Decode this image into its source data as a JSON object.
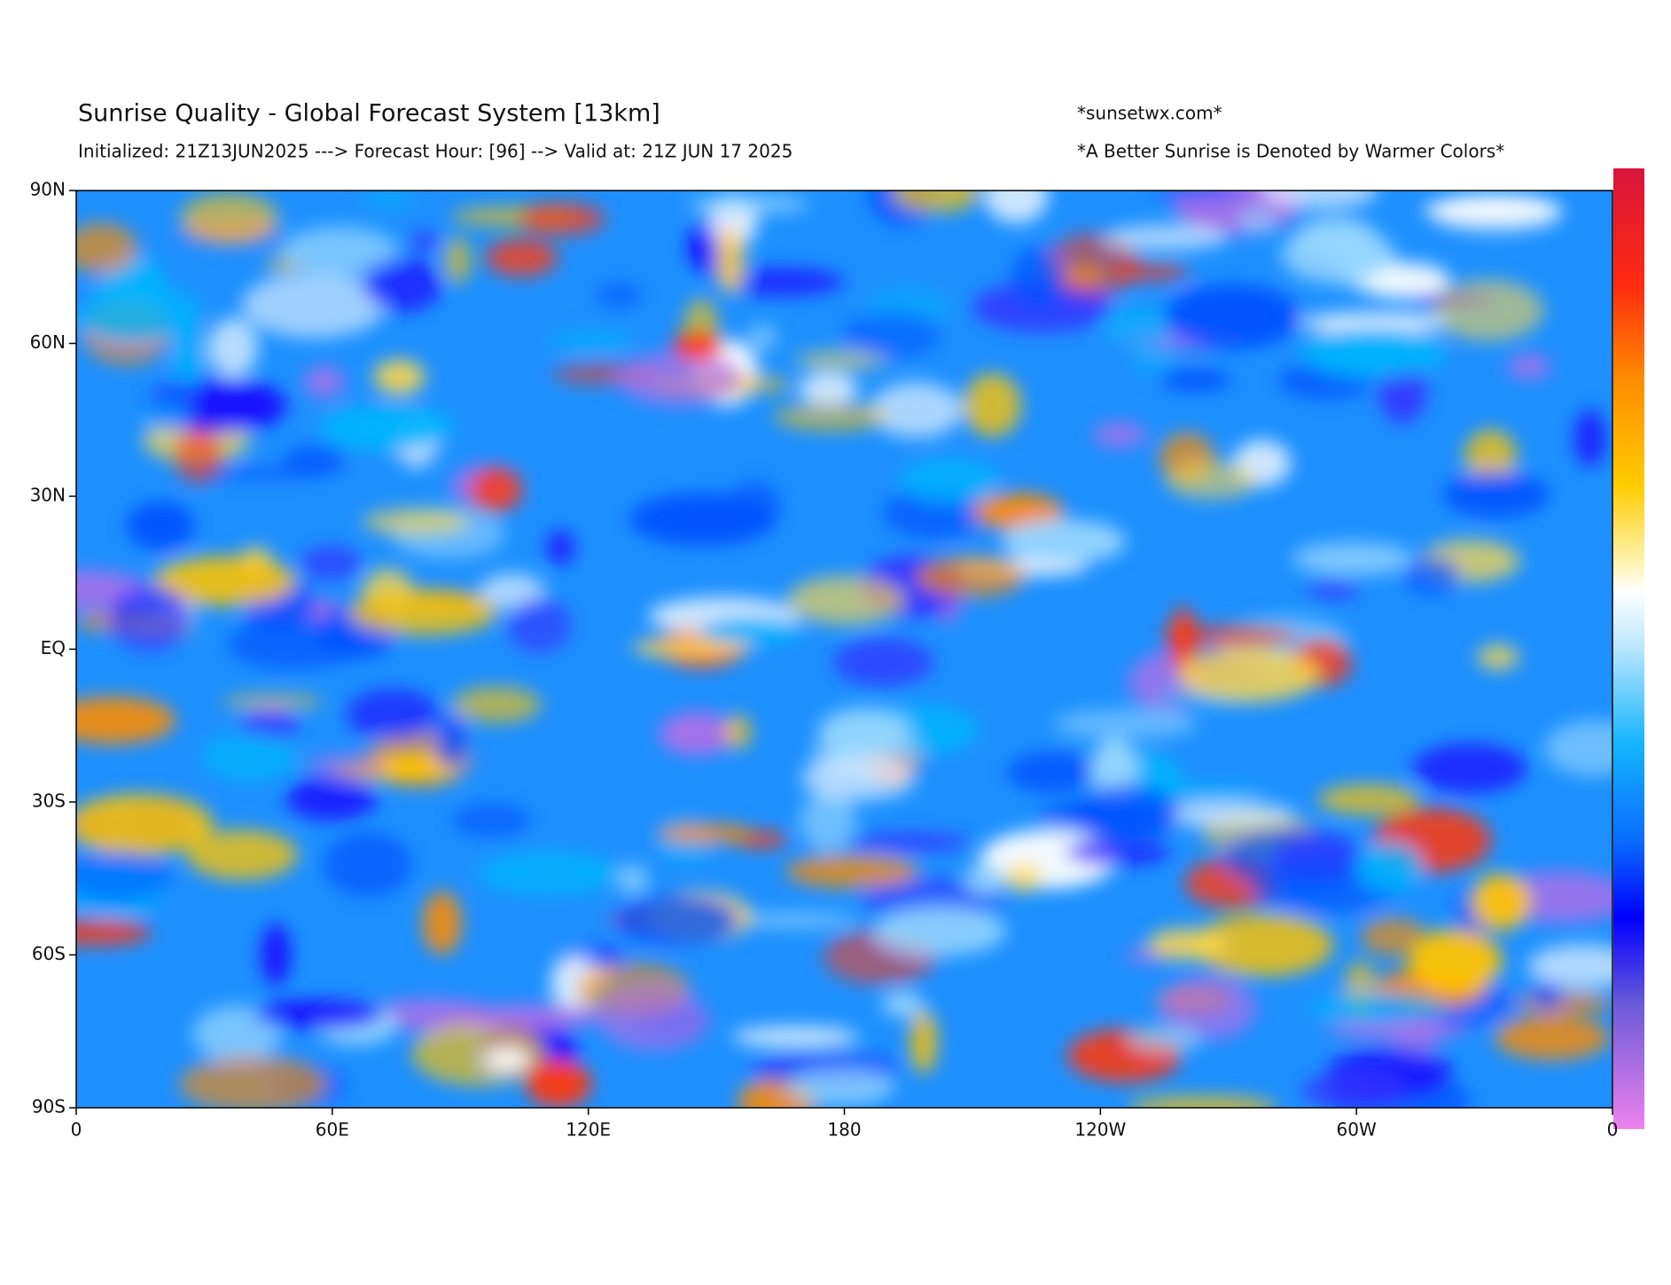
{
  "header": {
    "title": "Sunrise Quality - Global Forecast System [13km]",
    "subtitle": "Initialized: 21Z13JUN2025 ---> Forecast Hour: [96] --> Valid at: 21Z JUN 17 2025",
    "site": "*sunsetwx.com*",
    "note": "*A Better Sunrise is Denoted by Warmer Colors*"
  },
  "map": {
    "lat_labels": [
      "90N",
      "60N",
      "30N",
      "EQ",
      "30S",
      "60S",
      "90S"
    ],
    "lon_labels": [
      "0",
      "60E",
      "120E",
      "180",
      "120W",
      "60W",
      "0"
    ]
  }
}
